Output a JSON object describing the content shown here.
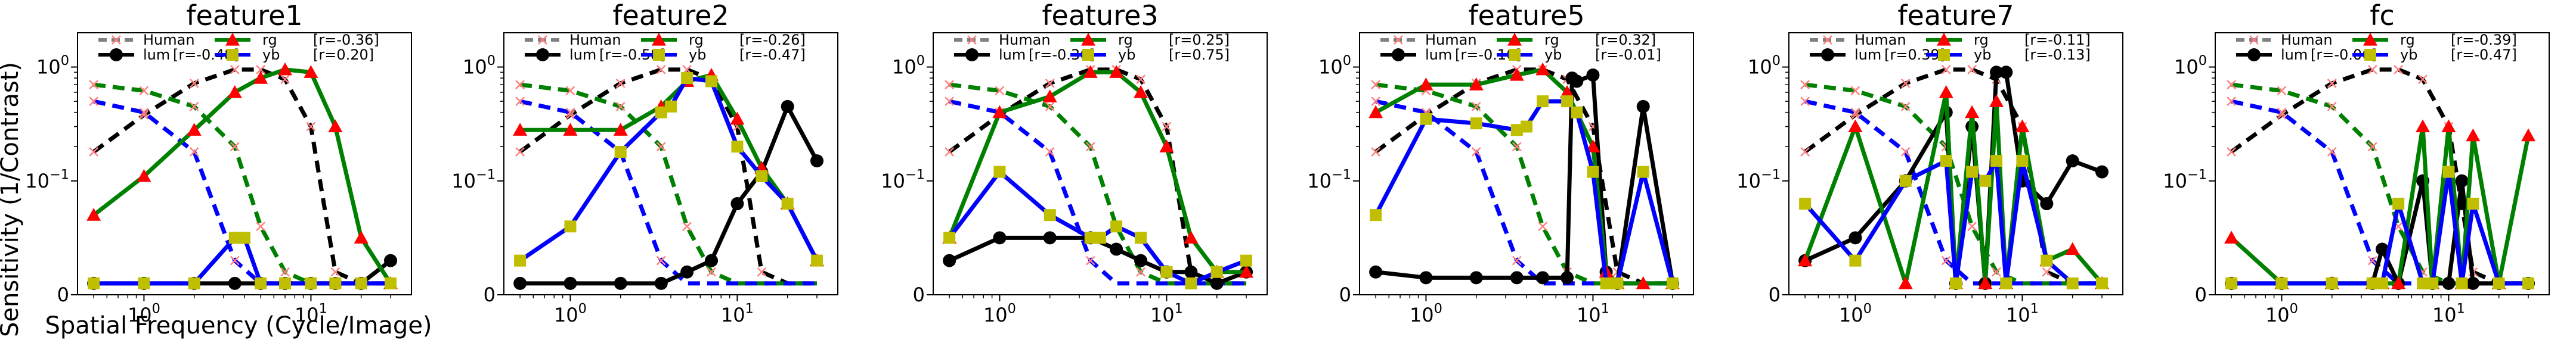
{
  "figure": {
    "ylabel": "Sensitivity (1/Contrast)",
    "xlabel": "Spatial Frequency (Cycle/Image)"
  },
  "legend_labels": {
    "human": "Human",
    "lum": "lum",
    "rg": "rg",
    "yb": "yb"
  },
  "colors": {
    "human": "#808080",
    "lum": "#000000",
    "rg": "#008000",
    "yb": "#0000ff",
    "rg_marker": "#ff0000",
    "yb_marker": "#bfbf00",
    "human_marker": "#ff8080"
  },
  "chart_data": [
    {
      "type": "line",
      "title": "feature1",
      "xscale": "log",
      "yscale": "symlog",
      "xlim": [
        0.4,
        40
      ],
      "ylim": [
        0,
        2
      ],
      "x_ticks": [
        {
          "value": 1,
          "label": "10^0"
        },
        {
          "value": 10,
          "label": "10^1"
        }
      ],
      "y_ticks": [
        {
          "value": 0,
          "label": "0"
        },
        {
          "value": 0.1,
          "label": "10^-1"
        },
        {
          "value": 1,
          "label": "10^0"
        }
      ],
      "corr": {
        "lum": "[r=-0.48]",
        "rg": "[r=-0.36]",
        "yb": "[r=0.20]"
      },
      "series": [
        {
          "key": "lum",
          "x": [
            0.5,
            1,
            2,
            3.5,
            5,
            7,
            10,
            14,
            20,
            30
          ],
          "y": [
            0.01,
            0.01,
            0.01,
            0.01,
            0.01,
            0.01,
            0.01,
            0.01,
            0.01,
            0.03
          ]
        },
        {
          "key": "rg",
          "x": [
            0.5,
            1,
            2,
            3.5,
            5,
            7,
            10,
            14,
            20,
            30
          ],
          "y": [
            0.07,
            0.11,
            0.28,
            0.6,
            0.8,
            0.95,
            0.9,
            0.3,
            0.05,
            0.01
          ]
        },
        {
          "key": "yb",
          "x": [
            0.5,
            1,
            2,
            3.5,
            4,
            5,
            7,
            10,
            14,
            20,
            30
          ],
          "y": [
            0.01,
            0.01,
            0.01,
            0.05,
            0.05,
            0.01,
            0.01,
            0.01,
            0.01,
            0.01,
            0.01
          ]
        }
      ]
    },
    {
      "type": "line",
      "title": "feature2",
      "xscale": "log",
      "yscale": "symlog",
      "xlim": [
        0.4,
        40
      ],
      "ylim": [
        0,
        2
      ],
      "x_ticks": [
        {
          "value": 1,
          "label": "10^0"
        },
        {
          "value": 10,
          "label": "10^1"
        }
      ],
      "y_ticks": [
        {
          "value": 0,
          "label": "0"
        },
        {
          "value": 0.1,
          "label": "10^-1"
        },
        {
          "value": 1,
          "label": "10^0"
        }
      ],
      "corr": {
        "lum": "[r=-0.58]",
        "rg": "[r=-0.26]",
        "yb": "[r=-0.47]"
      },
      "series": [
        {
          "key": "lum",
          "x": [
            0.5,
            1,
            2,
            3.5,
            5,
            7,
            10,
            14,
            20,
            30
          ],
          "y": [
            0.01,
            0.01,
            0.01,
            0.01,
            0.02,
            0.03,
            0.08,
            0.12,
            0.45,
            0.15
          ]
        },
        {
          "key": "rg",
          "x": [
            0.5,
            1,
            2,
            3.5,
            5,
            7,
            10,
            14,
            20,
            30
          ],
          "y": [
            0.28,
            0.28,
            0.28,
            0.45,
            0.75,
            0.85,
            0.35,
            0.13,
            0.08,
            0.03
          ]
        },
        {
          "key": "yb",
          "x": [
            0.5,
            1,
            2,
            3.5,
            4,
            5,
            7,
            10,
            14,
            20,
            30
          ],
          "y": [
            0.03,
            0.06,
            0.18,
            0.4,
            0.45,
            0.8,
            0.75,
            0.2,
            0.11,
            0.08,
            0.03
          ]
        }
      ]
    },
    {
      "type": "line",
      "title": "feature3",
      "xscale": "log",
      "yscale": "symlog",
      "xlim": [
        0.4,
        40
      ],
      "ylim": [
        0,
        2
      ],
      "x_ticks": [
        {
          "value": 1,
          "label": "10^0"
        },
        {
          "value": 10,
          "label": "10^1"
        }
      ],
      "y_ticks": [
        {
          "value": 0,
          "label": "0"
        },
        {
          "value": 0.1,
          "label": "10^-1"
        },
        {
          "value": 1,
          "label": "10^0"
        }
      ],
      "corr": {
        "lum": "[r=-0.36]",
        "rg": "[r=0.25]",
        "yb": "[r=0.75]"
      },
      "series": [
        {
          "key": "lum",
          "x": [
            0.5,
            1,
            2,
            3.5,
            5,
            7,
            10,
            14,
            20,
            30
          ],
          "y": [
            0.03,
            0.05,
            0.05,
            0.05,
            0.04,
            0.03,
            0.02,
            0.02,
            0.01,
            0.02
          ]
        },
        {
          "key": "rg",
          "x": [
            0.5,
            1,
            2,
            3.5,
            5,
            7,
            10,
            14,
            20,
            30
          ],
          "y": [
            0.05,
            0.4,
            0.55,
            0.9,
            0.9,
            0.6,
            0.2,
            0.05,
            0.02,
            0.02
          ]
        },
        {
          "key": "yb",
          "x": [
            0.5,
            1,
            2,
            3.5,
            4,
            5,
            7,
            10,
            14,
            20,
            30
          ],
          "y": [
            0.05,
            0.12,
            0.07,
            0.05,
            0.05,
            0.06,
            0.05,
            0.02,
            0.01,
            0.02,
            0.03
          ]
        }
      ]
    },
    {
      "type": "line",
      "title": "feature5",
      "xscale": "log",
      "yscale": "symlog",
      "xlim": [
        0.4,
        40
      ],
      "ylim": [
        0,
        2
      ],
      "x_ticks": [
        {
          "value": 1,
          "label": "10^0"
        },
        {
          "value": 10,
          "label": "10^1"
        }
      ],
      "y_ticks": [
        {
          "value": 0,
          "label": "0"
        },
        {
          "value": 0.1,
          "label": "10^-1"
        },
        {
          "value": 1,
          "label": "10^0"
        }
      ],
      "corr": {
        "lum": "[r=-0.10]",
        "rg": "[r=0.32]",
        "yb": "[r=-0.01]"
      },
      "series": [
        {
          "key": "lum",
          "x": [
            0.5,
            1,
            2,
            3.5,
            5,
            7,
            7.5,
            8,
            10,
            12,
            14,
            20,
            30
          ],
          "y": [
            0.02,
            0.015,
            0.015,
            0.015,
            0.015,
            0.015,
            0.8,
            0.75,
            0.85,
            0.02,
            0.01,
            0.45,
            0.01
          ]
        },
        {
          "key": "rg",
          "x": [
            0.5,
            1,
            2,
            3.5,
            5,
            7,
            10,
            12,
            14,
            20,
            30
          ],
          "y": [
            0.4,
            0.7,
            0.7,
            0.85,
            0.95,
            0.6,
            0.2,
            0.02,
            0.01,
            0.01,
            0.01
          ]
        },
        {
          "key": "yb",
          "x": [
            0.5,
            1,
            2,
            3.5,
            4,
            5,
            7,
            8,
            10,
            12,
            14,
            20,
            30
          ],
          "y": [
            0.07,
            0.35,
            0.32,
            0.28,
            0.3,
            0.5,
            0.5,
            0.4,
            0.12,
            0.01,
            0.01,
            0.12,
            0.01
          ]
        }
      ]
    },
    {
      "type": "line",
      "title": "feature7",
      "xscale": "log",
      "yscale": "symlog",
      "xlim": [
        0.4,
        40
      ],
      "ylim": [
        0,
        2
      ],
      "x_ticks": [
        {
          "value": 1,
          "label": "10^0"
        },
        {
          "value": 10,
          "label": "10^1"
        }
      ],
      "y_ticks": [
        {
          "value": 0,
          "label": "0"
        },
        {
          "value": 0.1,
          "label": "10^-1"
        },
        {
          "value": 1,
          "label": "10^0"
        }
      ],
      "corr": {
        "lum": "[r=0.39]",
        "rg": "[r=-0.11]",
        "yb": "[r=-0.13]"
      },
      "series": [
        {
          "key": "lum",
          "x": [
            0.5,
            1,
            2,
            3.5,
            4,
            5,
            6,
            7,
            8,
            10,
            14,
            20,
            30
          ],
          "y": [
            0.03,
            0.05,
            0.1,
            0.4,
            0.01,
            0.3,
            0.01,
            0.9,
            0.9,
            0.1,
            0.08,
            0.15,
            0.12
          ]
        },
        {
          "key": "rg",
          "x": [
            0.5,
            1,
            2,
            3.5,
            4,
            5,
            6,
            7,
            8,
            10,
            14,
            20,
            30
          ],
          "y": [
            0.03,
            0.3,
            0.01,
            0.6,
            0.01,
            0.4,
            0.01,
            0.5,
            0.01,
            0.3,
            0.03,
            0.04,
            0.01
          ]
        },
        {
          "key": "yb",
          "x": [
            0.5,
            1,
            2,
            3.5,
            4,
            5,
            6,
            7,
            8,
            10,
            14,
            20,
            30
          ],
          "y": [
            0.08,
            0.03,
            0.1,
            0.15,
            0.01,
            0.12,
            0.1,
            0.15,
            0.01,
            0.15,
            0.03,
            0.01,
            0.01
          ]
        }
      ]
    },
    {
      "type": "line",
      "title": "fc",
      "xscale": "log",
      "yscale": "symlog",
      "xlim": [
        0.4,
        40
      ],
      "ylim": [
        0,
        2
      ],
      "x_ticks": [
        {
          "value": 1,
          "label": "10^0"
        },
        {
          "value": 10,
          "label": "10^1"
        }
      ],
      "y_ticks": [
        {
          "value": 0,
          "label": "0"
        },
        {
          "value": 0.1,
          "label": "10^-1"
        },
        {
          "value": 1,
          "label": "10^0"
        }
      ],
      "corr": {
        "lum": "[r=-0.06]",
        "rg": "[r=-0.39]",
        "yb": "[r=-0.47]"
      },
      "series": [
        {
          "key": "lum",
          "x": [
            0.5,
            1,
            2,
            3.5,
            4,
            5,
            7,
            8,
            10,
            12,
            14,
            20,
            30
          ],
          "y": [
            0.01,
            0.01,
            0.01,
            0.01,
            0.04,
            0.01,
            0.1,
            0.01,
            0.01,
            0.1,
            0.01,
            0.01,
            0.01
          ]
        },
        {
          "key": "rg",
          "x": [
            0.5,
            1,
            2,
            3.5,
            4,
            5,
            7,
            8,
            10,
            12,
            14,
            20,
            30
          ],
          "y": [
            0.05,
            0.01,
            0.01,
            0.01,
            0.01,
            0.01,
            0.3,
            0.01,
            0.3,
            0.01,
            0.25,
            0.01,
            0.25
          ]
        },
        {
          "key": "yb",
          "x": [
            0.5,
            1,
            2,
            3.5,
            4,
            5,
            7,
            8,
            10,
            12,
            14,
            20,
            30
          ],
          "y": [
            0.01,
            0.01,
            0.01,
            0.01,
            0.01,
            0.08,
            0.01,
            0.01,
            0.12,
            0.01,
            0.08,
            0.01,
            0.01
          ]
        }
      ]
    }
  ],
  "human_csf": {
    "lum": {
      "x": [
        0.5,
        1,
        2,
        3.5,
        5,
        7,
        10,
        14,
        20,
        30
      ],
      "y": [
        0.18,
        0.38,
        0.72,
        0.95,
        0.95,
        0.78,
        0.3,
        0.02,
        0.01,
        0.01
      ]
    },
    "rg": {
      "x": [
        0.5,
        1,
        2,
        3.5,
        5,
        7,
        10,
        14,
        20,
        30
      ],
      "y": [
        0.7,
        0.62,
        0.45,
        0.2,
        0.06,
        0.02,
        0.01,
        0.01,
        0.01,
        0.01
      ]
    },
    "yb": {
      "x": [
        0.5,
        1,
        2,
        3.5,
        5,
        7,
        10,
        14,
        20,
        30
      ],
      "y": [
        0.5,
        0.4,
        0.18,
        0.03,
        0.01,
        0.01,
        0.01,
        0.01,
        0.01,
        0.01
      ]
    }
  }
}
